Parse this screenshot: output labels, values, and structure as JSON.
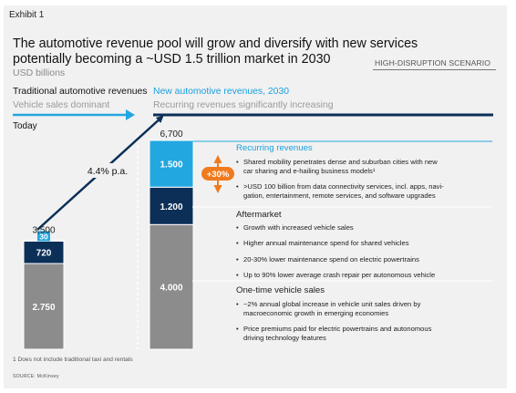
{
  "exhibit": "Exhibit 1",
  "title": "The automotive revenue pool will grow and diversify with new services potentially becoming a ~USD 1.5 trillion market in 2030",
  "subtitle": "USD billions",
  "scenario": "HIGH-DISRUPTION SCENARIO",
  "traditional": {
    "label": "Traditional automotive revenues",
    "sublabel": "Vehicle sales dominant",
    "period": "Today"
  },
  "new": {
    "label": "New automotive revenues, 2030",
    "sublabel": "Recurring revenues significantly increasing"
  },
  "growth_label": "4.4% p.a.",
  "increase_label": "+30%",
  "colors": {
    "recurring": "#22a7e0",
    "aftermarket": "#0b2f57",
    "one_time": "#8c8c8c",
    "navy": "#0b2f57",
    "orange": "#f07a1e",
    "cyan": "#1aa0e0"
  },
  "chart_data": {
    "type": "bar",
    "stacked": true,
    "categories": [
      "Today",
      "2030"
    ],
    "series": [
      {
        "name": "One-time vehicle sales",
        "values": [
          2750,
          4000
        ],
        "labels": [
          "2.750",
          "4.000"
        ]
      },
      {
        "name": "Aftermarket",
        "values": [
          720,
          1200
        ],
        "labels": [
          "720",
          "1.200"
        ]
      },
      {
        "name": "Recurring revenues",
        "values": [
          30,
          1500
        ],
        "labels": [
          "30",
          "1.500"
        ]
      }
    ],
    "totals": [
      3500,
      6700
    ],
    "total_labels": [
      "3,500",
      "6,700"
    ],
    "ylim": [
      0,
      6700
    ],
    "xlabel": "",
    "ylabel": ""
  },
  "sections": [
    {
      "key": "recurring",
      "heading": "Recurring revenues",
      "bullets": [
        [
          "Shared mobility penetrates dense and suburban cities with new",
          "car sharing and e-hailing business models¹"
        ],
        [
          ">USD 100 billion from data connectivity services, incl. apps, navi-",
          "gation, entertainment, remote services, and software upgrades"
        ]
      ]
    },
    {
      "key": "aftermarket",
      "heading": "Aftermarket",
      "bullets": [
        [
          "Growth with increased vehicle sales"
        ],
        [
          "Higher annual maintenance spend for shared vehicles"
        ],
        [
          "20-30% lower maintenance spend on electric powertrains"
        ],
        [
          "Up to 90% lower average crash repair per autonomous vehicle"
        ]
      ]
    },
    {
      "key": "one_time",
      "heading": "One-time vehicle sales",
      "bullets": [
        [
          "~2% annual global increase in vehicle unit sales driven by",
          "macroeconomic growth in emerging economies"
        ],
        [
          "Price premiums paid for electric powertrains and autonomous",
          "driving technology features"
        ]
      ]
    }
  ],
  "footnote": "1 Does not include traditional taxi and rentals",
  "source": "SOURCE: McKinsey"
}
